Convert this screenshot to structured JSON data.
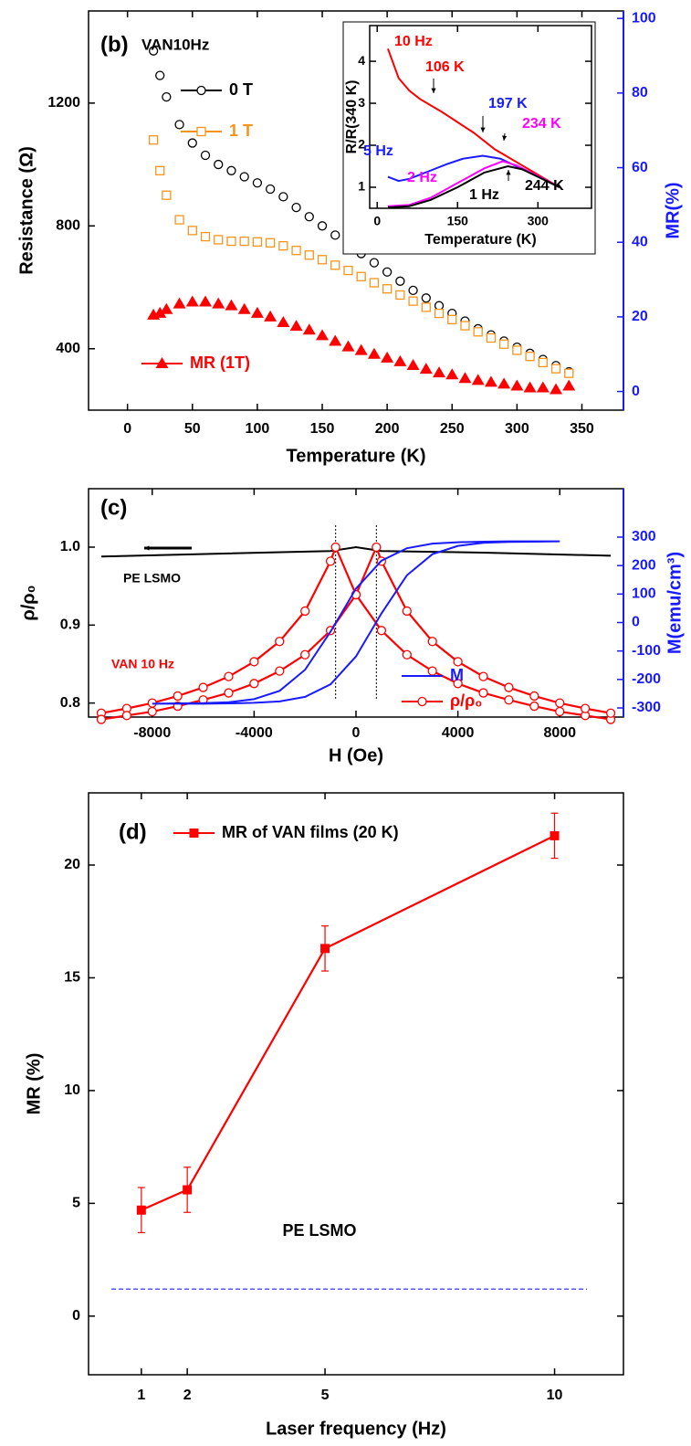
{
  "chart_data": [
    {
      "type": "scatter",
      "annotations": [
        "(b)",
        "VAN10Hz"
      ],
      "xlabel": "Temperature (K)",
      "ylabel": "Resistance (Ω)",
      "y2label": "MR(%)",
      "xlim": [
        -30,
        382
      ],
      "xticks": [
        0,
        50,
        100,
        150,
        200,
        250,
        300,
        350
      ],
      "ylim": [
        200,
        1500
      ],
      "yticks": [
        400,
        800,
        1200
      ],
      "y2lim": [
        -5,
        102
      ],
      "y2ticks": [
        0,
        20,
        40,
        60,
        80,
        100
      ],
      "x": [
        20,
        25,
        30,
        40,
        50,
        60,
        70,
        80,
        90,
        100,
        110,
        120,
        130,
        140,
        150,
        160,
        170,
        180,
        190,
        200,
        210,
        220,
        230,
        240,
        250,
        260,
        270,
        280,
        290,
        300,
        310,
        320,
        330,
        340
      ],
      "series": [
        {
          "name": "0 T",
          "color": "#000000",
          "marker": "open-circle",
          "line": false,
          "values": [
            1370,
            1290,
            1220,
            1130,
            1070,
            1030,
            1000,
            980,
            960,
            940,
            920,
            895,
            860,
            830,
            800,
            770,
            740,
            710,
            680,
            650,
            620,
            590,
            565,
            540,
            515,
            490,
            465,
            445,
            425,
            405,
            385,
            365,
            345,
            325
          ]
        },
        {
          "name": "1 T",
          "color": "#f7941d",
          "marker": "open-square",
          "line": false,
          "values": [
            1080,
            980,
            900,
            820,
            785,
            765,
            755,
            750,
            750,
            748,
            745,
            735,
            720,
            705,
            690,
            672,
            655,
            635,
            615,
            595,
            575,
            555,
            535,
            515,
            495,
            475,
            455,
            435,
            415,
            395,
            375,
            355,
            335,
            320
          ]
        },
        {
          "name": "MR (1T)",
          "color": "#ff0000",
          "marker": "triangle",
          "line": false,
          "axis": "y2",
          "values": [
            20.5,
            21,
            22,
            23.5,
            24,
            24,
            23.5,
            23,
            22,
            21,
            20,
            18.5,
            17.5,
            16.5,
            15,
            13.5,
            12,
            11,
            10,
            9,
            8,
            7,
            6,
            5,
            4.5,
            3.5,
            3,
            2.5,
            2,
            1.5,
            1,
            1,
            0.5,
            1.5
          ]
        }
      ]
    },
    {
      "type": "line",
      "annotations": [
        "10 Hz",
        "106 K",
        "197 K",
        "234 K",
        "5 Hz",
        "2 Hz",
        "1 Hz",
        "244 K"
      ],
      "xlabel": "Temperature (K)",
      "ylabel": "R/R(340 K)",
      "xlim": [
        -14,
        400
      ],
      "xticks": [
        0,
        150,
        300
      ],
      "ylim": [
        0.5,
        4.85
      ],
      "yticks": [
        1,
        2,
        3,
        4
      ],
      "series": [
        {
          "color": "#ff0000",
          "line": true,
          "x": [
            20,
            40,
            60,
            80,
            100,
            120,
            150,
            180,
            200,
            220,
            240,
            260,
            280,
            300,
            320,
            340
          ],
          "values": [
            4.3,
            3.6,
            3.3,
            3.1,
            2.95,
            2.8,
            2.55,
            2.3,
            2.1,
            1.9,
            1.75,
            1.6,
            1.45,
            1.3,
            1.15,
            1.0
          ]
        },
        {
          "color": "#1a1aff",
          "line": true,
          "x": [
            20,
            40,
            60,
            80,
            100,
            130,
            160,
            197,
            230,
            260,
            300,
            340
          ],
          "values": [
            1.25,
            1.15,
            1.2,
            1.3,
            1.4,
            1.55,
            1.68,
            1.75,
            1.68,
            1.5,
            1.25,
            1.0
          ]
        },
        {
          "color": "#ff00ff",
          "line": true,
          "x": [
            20,
            60,
            100,
            150,
            200,
            234,
            260,
            300,
            340
          ],
          "values": [
            0.55,
            0.58,
            0.75,
            1.1,
            1.45,
            1.62,
            1.52,
            1.27,
            1.0
          ]
        },
        {
          "color": "#000000",
          "line": true,
          "x": [
            20,
            60,
            100,
            150,
            200,
            244,
            270,
            300,
            340
          ],
          "values": [
            0.52,
            0.55,
            0.7,
            1.0,
            1.35,
            1.5,
            1.43,
            1.25,
            1.0
          ]
        }
      ]
    },
    {
      "type": "line",
      "annotations": [
        "(c)",
        "PE LSMO",
        "VAN 10 Hz"
      ],
      "xlabel": "H (Oe)",
      "ylabel": "ρ/ρ₀",
      "y2label": "M(emu/cm³)",
      "xlim": [
        -10500,
        10500
      ],
      "xticks": [
        -8000,
        -4000,
        0,
        4000,
        8000
      ],
      "ylim": [
        0.782,
        1.075
      ],
      "yticks": [
        0.8,
        0.9,
        {
          "value": 1,
          "label": "1.0"
        }
      ],
      "y2lim": [
        -332,
        470
      ],
      "y2ticks": [
        -300,
        -200,
        -100,
        0,
        100,
        200,
        300
      ],
      "vlines": [
        -800,
        800
      ],
      "series": [
        {
          "color": "#000000",
          "line": true,
          "x": [
            -10000,
            -5000,
            -1000,
            0,
            1000,
            5000,
            10000
          ],
          "values": [
            0.988,
            0.992,
            0.995,
            1.0,
            0.995,
            0.993,
            0.989
          ]
        },
        {
          "name": "ρ/ρ₀",
          "color": "#ff0000",
          "marker": "open-circle",
          "line": true,
          "x": [
            -10000,
            -9000,
            -8000,
            -7000,
            -6000,
            -5000,
            -4000,
            -3000,
            -2000,
            -1000,
            -800,
            0,
            1000,
            2000,
            3000,
            4000,
            5000,
            6000,
            7000,
            8000,
            9000,
            10000
          ],
          "values": [
            0.787,
            0.793,
            0.8,
            0.809,
            0.82,
            0.834,
            0.853,
            0.879,
            0.918,
            0.982,
            1.0,
            0.939,
            0.893,
            0.862,
            0.841,
            0.825,
            0.813,
            0.804,
            0.796,
            0.789,
            0.784,
            0.779
          ]
        },
        {
          "color": "#ff0000",
          "marker": "open-circle",
          "line": true,
          "x": [
            -10000,
            -9000,
            -8000,
            -7000,
            -6000,
            -5000,
            -4000,
            -3000,
            -2000,
            -1000,
            0,
            800,
            1000,
            2000,
            3000,
            4000,
            5000,
            6000,
            7000,
            8000,
            9000,
            10000
          ],
          "values": [
            0.779,
            0.784,
            0.789,
            0.796,
            0.804,
            0.813,
            0.825,
            0.841,
            0.862,
            0.893,
            0.939,
            1.0,
            0.982,
            0.918,
            0.879,
            0.853,
            0.834,
            0.82,
            0.809,
            0.8,
            0.793,
            0.787
          ]
        },
        {
          "name": "M",
          "color": "#1a1aff",
          "line": true,
          "axis": "y2",
          "x": [
            8000,
            7000,
            6000,
            5000,
            4000,
            3000,
            2000,
            1000,
            0,
            -1000,
            -2000,
            -3000,
            -4000,
            -5000,
            -6000,
            -7000,
            -8000,
            -7000,
            -6000,
            -5000,
            -4000,
            -3000,
            -2000,
            -1000,
            0,
            1000,
            2000,
            3000,
            4000,
            5000,
            6000,
            7000,
            8000
          ],
          "values": [
            285,
            285,
            285,
            284,
            282,
            277,
            261,
            217,
            119,
            -32,
            -166,
            -240,
            -269,
            -280,
            -283,
            -284,
            -285,
            -285,
            -285,
            -284,
            -282,
            -277,
            -261,
            -217,
            -119,
            32,
            166,
            240,
            269,
            280,
            283,
            284,
            285
          ]
        }
      ]
    },
    {
      "type": "line",
      "annotations": [
        "(d)",
        "PE LSMO"
      ],
      "xlabel": "Laser frequency (Hz)",
      "ylabel": "MR (%)",
      "xlim": [
        -0.15,
        11.5
      ],
      "xticks": [
        1,
        2,
        5,
        10
      ],
      "ylim": [
        -2.6,
        23.2
      ],
      "yticks": [
        0,
        5,
        10,
        15,
        20
      ],
      "reference_line": 1.2,
      "reference_color": "#1a1aff",
      "series": [
        {
          "name": "MR of VAN films (20 K)",
          "color": "#ff0000",
          "marker": "square",
          "line": true,
          "x": [
            1,
            2,
            5,
            10
          ],
          "values": [
            4.7,
            5.6,
            16.3,
            21.3
          ],
          "errors": [
            1,
            1,
            1,
            1
          ]
        }
      ]
    }
  ]
}
